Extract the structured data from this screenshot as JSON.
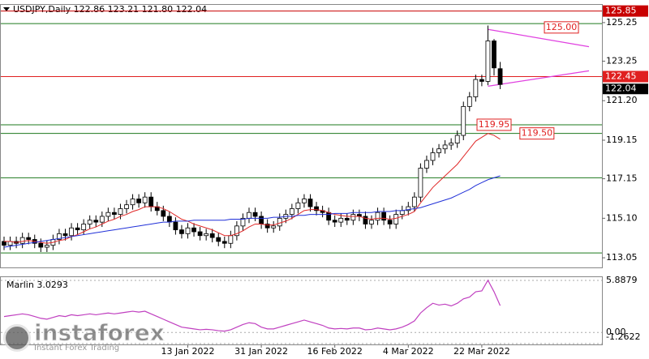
{
  "chart_data": [
    {
      "type": "candlestick",
      "title": "USDJPY,Daily  122.86 123.21 121.80 122.04",
      "categories": [
        null,
        null,
        null,
        null,
        null,
        null,
        null,
        null,
        null,
        null,
        null,
        null,
        null,
        null,
        null,
        null,
        null,
        null,
        null,
        null,
        null,
        null,
        null,
        null,
        null,
        null,
        null,
        null,
        null,
        null,
        "13 Jan 2022",
        null,
        null,
        null,
        null,
        null,
        null,
        null,
        null,
        null,
        null,
        null,
        "31 Jan 2022",
        null,
        null,
        null,
        null,
        null,
        null,
        null,
        null,
        null,
        null,
        null,
        "16 Feb 2022",
        null,
        null,
        null,
        null,
        null,
        null,
        null,
        null,
        null,
        null,
        null,
        "4 Mar 2022",
        null,
        null,
        null,
        null,
        null,
        null,
        null,
        null,
        null,
        null,
        null,
        "22 Mar 2022",
        null,
        null,
        null
      ],
      "open": [
        113.9,
        113.7,
        113.9,
        113.8,
        114.1,
        114.0,
        113.8,
        113.6,
        113.7,
        114.0,
        114.3,
        114.2,
        114.6,
        114.5,
        114.8,
        115.0,
        114.9,
        115.2,
        115.4,
        115.3,
        115.6,
        115.8,
        116.1,
        115.9,
        116.2,
        115.7,
        115.5,
        115.2,
        114.9,
        114.5,
        114.3,
        114.6,
        114.4,
        114.2,
        114.3,
        114.1,
        113.9,
        113.8,
        114.2,
        114.7,
        115.1,
        115.4,
        115.2,
        114.8,
        114.6,
        114.7,
        115.1,
        115.3,
        115.6,
        115.9,
        116.1,
        115.7,
        115.5,
        115.4,
        115.0,
        114.9,
        115.1,
        115.0,
        115.3,
        115.2,
        114.8,
        115.0,
        115.4,
        115.0,
        114.8,
        115.3,
        115.5,
        115.7,
        116.2,
        117.7,
        118.1,
        118.5,
        118.7,
        118.9,
        119.0,
        119.4,
        120.9,
        121.4,
        122.3,
        122.2,
        124.3,
        122.86
      ],
      "high": [
        114.15,
        114.15,
        114.15,
        114.35,
        114.35,
        114.25,
        114.05,
        113.95,
        114.25,
        114.55,
        114.55,
        114.85,
        114.85,
        115.05,
        115.25,
        115.25,
        115.45,
        115.65,
        115.65,
        115.85,
        116.05,
        116.35,
        116.35,
        116.45,
        116.45,
        115.95,
        115.75,
        115.45,
        115.15,
        114.75,
        114.85,
        114.85,
        114.65,
        114.55,
        114.55,
        114.35,
        114.15,
        114.45,
        114.95,
        115.35,
        115.65,
        115.65,
        115.45,
        115.05,
        114.95,
        115.35,
        115.55,
        115.85,
        116.15,
        116.35,
        116.35,
        115.95,
        115.75,
        115.65,
        115.25,
        115.35,
        115.35,
        115.55,
        115.55,
        115.45,
        115.25,
        115.65,
        115.65,
        115.25,
        115.55,
        115.75,
        115.95,
        116.45,
        117.95,
        118.35,
        118.75,
        118.95,
        119.15,
        119.25,
        119.65,
        121.15,
        121.65,
        122.55,
        122.55,
        125.1,
        124.4,
        123.21
      ],
      "low": [
        113.45,
        113.45,
        113.55,
        113.55,
        113.75,
        113.55,
        113.35,
        113.35,
        113.45,
        113.75,
        113.95,
        113.95,
        114.25,
        114.25,
        114.55,
        114.65,
        114.65,
        114.95,
        115.05,
        115.05,
        115.35,
        115.55,
        115.65,
        115.65,
        115.45,
        115.25,
        114.95,
        114.65,
        114.25,
        114.05,
        114.05,
        114.15,
        113.95,
        113.95,
        113.85,
        113.65,
        113.55,
        113.55,
        113.95,
        114.45,
        114.85,
        114.95,
        114.55,
        114.35,
        114.35,
        114.45,
        114.85,
        115.05,
        115.35,
        115.65,
        115.45,
        115.25,
        115.15,
        114.75,
        114.65,
        114.65,
        114.75,
        114.75,
        114.95,
        114.55,
        114.55,
        114.75,
        114.75,
        114.55,
        114.55,
        115.05,
        115.25,
        115.45,
        115.95,
        117.45,
        117.85,
        118.25,
        118.45,
        118.65,
        118.75,
        119.15,
        120.65,
        121.15,
        121.95,
        122.0,
        122.5,
        121.8
      ],
      "close": [
        113.7,
        113.9,
        113.8,
        114.1,
        114.0,
        113.8,
        113.6,
        113.7,
        114.0,
        114.3,
        114.2,
        114.6,
        114.5,
        114.8,
        115.0,
        114.9,
        115.2,
        115.4,
        115.3,
        115.6,
        115.8,
        116.1,
        115.9,
        116.2,
        115.7,
        115.5,
        115.2,
        114.9,
        114.5,
        114.3,
        114.6,
        114.4,
        114.2,
        114.3,
        114.1,
        113.9,
        113.8,
        114.2,
        114.7,
        115.1,
        115.4,
        115.2,
        114.8,
        114.6,
        114.7,
        115.1,
        115.3,
        115.6,
        115.9,
        116.1,
        115.7,
        115.5,
        115.4,
        115.0,
        114.9,
        115.1,
        115.0,
        115.3,
        115.2,
        114.8,
        115.0,
        115.4,
        115.0,
        114.8,
        115.3,
        115.5,
        115.7,
        116.2,
        117.7,
        118.1,
        118.5,
        118.7,
        118.9,
        119.0,
        119.4,
        120.9,
        121.4,
        122.3,
        122.2,
        124.3,
        122.9,
        122.04
      ],
      "overlays": [
        {
          "color": "#e02828",
          "values": [
            113.9,
            113.9,
            113.85,
            113.9,
            113.95,
            113.9,
            113.85,
            113.8,
            113.85,
            113.95,
            114.0,
            114.15,
            114.25,
            114.4,
            114.55,
            114.65,
            114.8,
            114.95,
            115.05,
            115.2,
            115.3,
            115.45,
            115.55,
            115.7,
            115.7,
            115.7,
            115.6,
            115.45,
            115.25,
            115.05,
            114.95,
            114.8,
            114.7,
            114.6,
            114.5,
            114.35,
            114.2,
            114.2,
            114.3,
            114.45,
            114.65,
            114.8,
            114.8,
            114.75,
            114.75,
            114.85,
            114.95,
            115.1,
            115.3,
            115.5,
            115.55,
            115.55,
            115.5,
            115.4,
            115.3,
            115.25,
            115.2,
            115.2,
            115.2,
            115.1,
            115.05,
            115.1,
            115.1,
            115.05,
            115.1,
            115.2,
            115.3,
            115.45,
            115.9,
            116.3,
            116.7,
            117.0,
            117.3,
            117.6,
            117.9,
            118.3,
            118.7,
            119.1,
            119.3,
            119.5,
            119.4,
            119.2
          ]
        },
        {
          "color": "#2030d8",
          "values": [
            113.6,
            113.65,
            113.7,
            113.75,
            113.8,
            113.85,
            113.9,
            113.95,
            114.0,
            114.05,
            114.1,
            114.15,
            114.2,
            114.25,
            114.3,
            114.35,
            114.4,
            114.45,
            114.5,
            114.55,
            114.6,
            114.65,
            114.7,
            114.75,
            114.8,
            114.85,
            114.9,
            114.9,
            114.95,
            114.95,
            114.95,
            115.0,
            115.0,
            115.0,
            115.0,
            115.0,
            115.0,
            115.05,
            115.05,
            115.05,
            115.1,
            115.1,
            115.1,
            115.1,
            115.15,
            115.15,
            115.2,
            115.2,
            115.25,
            115.25,
            115.3,
            115.3,
            115.3,
            115.3,
            115.35,
            115.35,
            115.35,
            115.4,
            115.4,
            115.4,
            115.4,
            115.45,
            115.45,
            115.45,
            115.5,
            115.5,
            115.55,
            115.6,
            115.65,
            115.75,
            115.85,
            115.95,
            116.05,
            116.15,
            116.3,
            116.45,
            116.6,
            116.8,
            116.95,
            117.1,
            117.2,
            117.3
          ]
        }
      ],
      "ylim": [
        112.55,
        126.17
      ],
      "yticks": [
        125.25,
        123.25,
        {
          "value": 121.2,
          "label": "121.20"
        },
        119.15,
        117.15,
        {
          "value": 115.1,
          "label": "115.10"
        },
        113.05
      ],
      "price_lines": [
        {
          "value": 125.85,
          "color": "#c80000"
        },
        {
          "value": 122.45,
          "color": "#e02020"
        }
      ],
      "level_lines": [
        {
          "value": 125.2,
          "color": "#1e7a1e"
        },
        {
          "value": 119.95,
          "color": "#1e7a1e"
        },
        {
          "value": 119.5,
          "color": "#1e7a1e"
        },
        {
          "value": 117.2,
          "color": "#1e7a1e"
        },
        {
          "value": 113.3,
          "color": "#1e7a1e"
        }
      ],
      "trend_lines": [
        {
          "color": "#e040e0",
          "points": [
            [
              79,
              124.9
            ],
            [
              95.5,
              124.0
            ]
          ]
        },
        {
          "color": "#e040e0",
          "points": [
            [
              79,
              121.95
            ],
            [
              95.5,
              122.75
            ]
          ]
        }
      ],
      "annotations": [
        {
          "value": 125,
          "label": "125.00"
        },
        {
          "value": 119.95,
          "label": "119.95"
        },
        {
          "value": 119.5,
          "label": "119.50"
        }
      ]
    },
    {
      "type": "line",
      "title": "Marlin 3.0293",
      "color": "#c040c0",
      "values": [
        1.8,
        1.9,
        2.0,
        2.1,
        2.0,
        1.8,
        1.6,
        1.5,
        1.7,
        1.9,
        1.8,
        2.0,
        1.9,
        2.0,
        2.1,
        2.0,
        2.1,
        2.2,
        2.1,
        2.2,
        2.3,
        2.4,
        2.3,
        2.4,
        2.1,
        1.8,
        1.5,
        1.2,
        0.9,
        0.6,
        0.5,
        0.4,
        0.3,
        0.35,
        0.3,
        0.2,
        0.15,
        0.3,
        0.6,
        0.9,
        1.1,
        1.0,
        0.6,
        0.4,
        0.4,
        0.6,
        0.8,
        1.0,
        1.2,
        1.4,
        1.2,
        1.0,
        0.8,
        0.5,
        0.4,
        0.45,
        0.4,
        0.5,
        0.5,
        0.3,
        0.35,
        0.5,
        0.4,
        0.3,
        0.4,
        0.6,
        0.9,
        1.3,
        2.2,
        2.8,
        3.3,
        3.1,
        3.2,
        3.0,
        3.3,
        3.8,
        4.0,
        4.6,
        4.7,
        5.9,
        4.6,
        3.03
      ],
      "ylim": [
        -1.2622,
        5.8879
      ],
      "yticks": [
        5.8879,
        {
          "value": 0,
          "label": "0.00"
        },
        -1.2622
      ],
      "grid": true
    }
  ],
  "watermark": {
    "brand": "instaforex",
    "tagline": "Instant Forex Trading"
  }
}
